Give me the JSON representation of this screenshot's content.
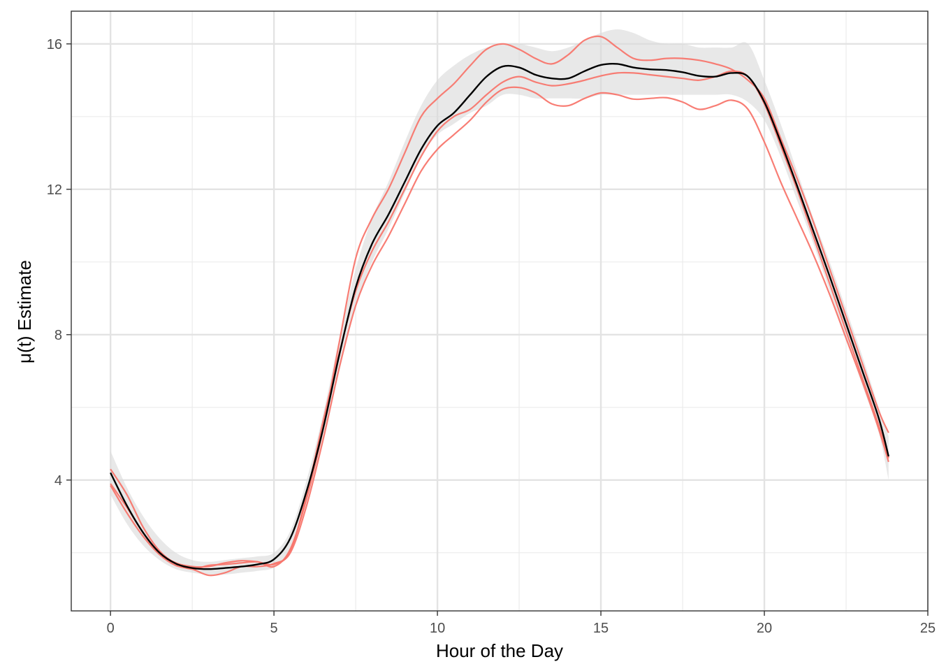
{
  "chart_data": {
    "type": "line",
    "xlabel": "Hour of the Day",
    "ylabel": "μ(t) Estimate",
    "xlim": [
      -1.2,
      25
    ],
    "ylim": [
      0.4,
      16.9
    ],
    "x_ticks": [
      0,
      5,
      10,
      15,
      20,
      25
    ],
    "y_ticks": [
      4,
      8,
      12,
      16
    ],
    "x_tick_labels": [
      "0",
      "5",
      "10",
      "15",
      "20",
      "25"
    ],
    "y_tick_labels": [
      "4",
      "8",
      "12",
      "16"
    ],
    "grid": true,
    "legend": "none",
    "colors": {
      "mean": "#000000",
      "samples": "#f8766d",
      "band": "#d9d9d9",
      "grid": "#ebebeb"
    },
    "x": [
      0,
      0.5,
      1,
      1.5,
      2,
      2.5,
      3,
      3.5,
      4,
      4.5,
      5,
      5.5,
      6,
      6.5,
      7,
      7.5,
      8,
      8.5,
      9,
      9.5,
      10,
      10.5,
      11,
      11.5,
      12,
      12.5,
      13,
      13.5,
      14,
      14.5,
      15,
      15.5,
      16,
      16.5,
      17,
      17.5,
      18,
      18.5,
      19,
      19.5,
      20,
      20.5,
      21,
      21.5,
      22,
      22.5,
      23,
      23.5,
      23.8
    ],
    "band": {
      "upper": [
        4.8,
        3.8,
        3.0,
        2.4,
        2.0,
        1.8,
        1.75,
        1.8,
        1.85,
        1.9,
        2.0,
        2.6,
        4.0,
        5.8,
        7.9,
        9.8,
        11.2,
        12.2,
        13.3,
        14.3,
        15.0,
        15.4,
        15.7,
        15.9,
        16.0,
        16.0,
        15.9,
        15.8,
        15.9,
        16.1,
        16.3,
        16.4,
        16.3,
        16.1,
        16.0,
        16.0,
        15.9,
        15.9,
        15.9,
        16.0,
        15.0,
        13.8,
        12.5,
        11.2,
        10.0,
        8.7,
        7.4,
        6.0,
        5.2
      ],
      "lower": [
        3.6,
        2.8,
        2.2,
        1.8,
        1.55,
        1.45,
        1.4,
        1.4,
        1.45,
        1.5,
        1.6,
        2.1,
        3.4,
        5.0,
        7.0,
        8.8,
        10.0,
        10.9,
        11.9,
        12.9,
        13.5,
        13.8,
        14.1,
        14.3,
        14.6,
        14.6,
        14.5,
        14.5,
        14.5,
        14.5,
        14.6,
        14.6,
        14.6,
        14.6,
        14.6,
        14.6,
        14.6,
        14.6,
        14.6,
        14.4,
        13.9,
        12.9,
        11.7,
        10.5,
        9.2,
        7.9,
        6.6,
        5.3,
        4.0
      ]
    },
    "series": [
      {
        "role": "mean",
        "values": [
          4.2,
          3.3,
          2.55,
          2.0,
          1.7,
          1.58,
          1.55,
          1.58,
          1.62,
          1.68,
          1.82,
          2.4,
          3.7,
          5.4,
          7.45,
          9.3,
          10.5,
          11.3,
          12.2,
          13.1,
          13.75,
          14.1,
          14.6,
          15.1,
          15.38,
          15.35,
          15.15,
          15.05,
          15.05,
          15.25,
          15.42,
          15.45,
          15.35,
          15.3,
          15.28,
          15.22,
          15.12,
          15.1,
          15.2,
          15.1,
          14.4,
          13.3,
          12.1,
          10.85,
          9.6,
          8.3,
          7.0,
          5.7,
          4.65
        ]
      },
      {
        "role": "sample",
        "values": [
          4.3,
          3.6,
          2.7,
          2.05,
          1.7,
          1.55,
          1.65,
          1.68,
          1.72,
          1.75,
          1.62,
          2.1,
          3.5,
          5.4,
          7.8,
          10.1,
          11.2,
          12.0,
          13.0,
          14.0,
          14.5,
          14.9,
          15.4,
          15.85,
          16.0,
          15.85,
          15.6,
          15.45,
          15.7,
          16.1,
          16.2,
          15.9,
          15.6,
          15.55,
          15.6,
          15.6,
          15.55,
          15.45,
          15.3,
          15.0,
          14.5,
          13.4,
          12.3,
          11.1,
          9.8,
          8.5,
          7.2,
          5.9,
          5.3
        ]
      },
      {
        "role": "sample",
        "values": [
          3.9,
          3.25,
          2.55,
          2.0,
          1.72,
          1.62,
          1.62,
          1.72,
          1.78,
          1.75,
          1.68,
          2.05,
          3.6,
          5.6,
          7.5,
          9.2,
          10.3,
          11.1,
          12.0,
          12.9,
          13.6,
          14.0,
          14.2,
          14.6,
          14.95,
          15.1,
          14.95,
          14.85,
          14.9,
          15.0,
          15.12,
          15.2,
          15.2,
          15.15,
          15.1,
          15.05,
          15.0,
          15.1,
          15.25,
          15.1,
          14.35,
          13.2,
          12.0,
          10.7,
          9.4,
          8.1,
          6.8,
          5.5,
          4.6
        ]
      },
      {
        "role": "sample",
        "values": [
          3.85,
          3.1,
          2.45,
          1.95,
          1.65,
          1.55,
          1.38,
          1.45,
          1.62,
          1.62,
          1.7,
          2.0,
          3.3,
          5.1,
          7.1,
          8.8,
          9.9,
          10.7,
          11.6,
          12.5,
          13.1,
          13.5,
          13.9,
          14.4,
          14.75,
          14.8,
          14.65,
          14.35,
          14.3,
          14.5,
          14.65,
          14.6,
          14.48,
          14.5,
          14.52,
          14.4,
          14.2,
          14.3,
          14.45,
          14.2,
          13.3,
          12.2,
          11.2,
          10.2,
          9.1,
          7.9,
          6.7,
          5.4,
          4.5
        ]
      }
    ]
  }
}
